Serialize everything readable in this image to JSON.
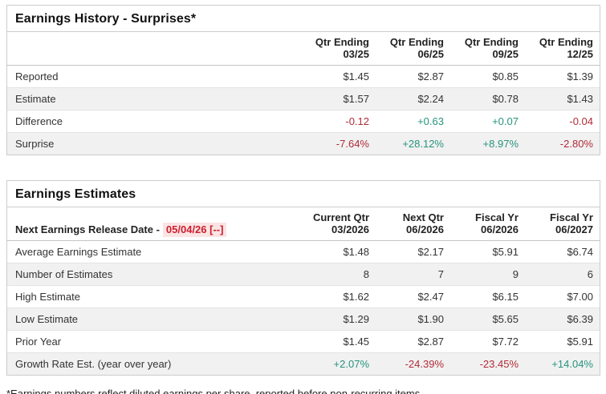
{
  "colors": {
    "positive": "#26947c",
    "negative": "#b02c38",
    "release_date_text": "#cc1f2d",
    "release_date_bg": "#fbe4e4"
  },
  "page": {
    "footnote": "*Earnings numbers reflect diluted earnings per share, reported before non-recurring items."
  },
  "tables": [
    {
      "title": "Earnings History - Surprises*",
      "corner_label": "",
      "columns": [
        {
          "line1": "Qtr Ending",
          "line2": "03/25"
        },
        {
          "line1": "Qtr Ending",
          "line2": "06/25"
        },
        {
          "line1": "Qtr Ending",
          "line2": "09/25"
        },
        {
          "line1": "Qtr Ending",
          "line2": "12/25"
        }
      ],
      "rows": [
        {
          "label": "Reported",
          "values": [
            "$1.45",
            "$2.87",
            "$0.85",
            "$1.39"
          ]
        },
        {
          "label": "Estimate",
          "values": [
            "$1.57",
            "$2.24",
            "$0.78",
            "$1.43"
          ]
        },
        {
          "label": "Difference",
          "values": [
            "-0.12",
            "+0.63",
            "+0.07",
            "-0.04"
          ]
        },
        {
          "label": "Surprise",
          "values": [
            "-7.64%",
            "+28.12%",
            "+8.97%",
            "-2.80%"
          ]
        }
      ]
    },
    {
      "title": "Earnings Estimates",
      "corner_label": "Next Earnings Release Date -",
      "release_date": "05/04/26 [--]",
      "columns": [
        {
          "line1": "Current Qtr",
          "line2": "03/2026"
        },
        {
          "line1": "Next Qtr",
          "line2": "06/2026"
        },
        {
          "line1": "Fiscal Yr",
          "line2": "06/2026"
        },
        {
          "line1": "Fiscal Yr",
          "line2": "06/2027"
        }
      ],
      "rows": [
        {
          "label": "Average Earnings Estimate",
          "values": [
            "$1.48",
            "$2.17",
            "$5.91",
            "$6.74"
          ]
        },
        {
          "label": "Number of Estimates",
          "values": [
            "8",
            "7",
            "9",
            "6"
          ]
        },
        {
          "label": "High Estimate",
          "values": [
            "$1.62",
            "$2.47",
            "$6.15",
            "$7.00"
          ]
        },
        {
          "label": "Low Estimate",
          "values": [
            "$1.29",
            "$1.90",
            "$5.65",
            "$6.39"
          ]
        },
        {
          "label": "Prior Year",
          "values": [
            "$1.45",
            "$2.87",
            "$7.72",
            "$5.91"
          ]
        },
        {
          "label": "Growth Rate Est. (year over year)",
          "values": [
            "+2.07%",
            "-24.39%",
            "-23.45%",
            "+14.04%"
          ]
        }
      ]
    }
  ]
}
